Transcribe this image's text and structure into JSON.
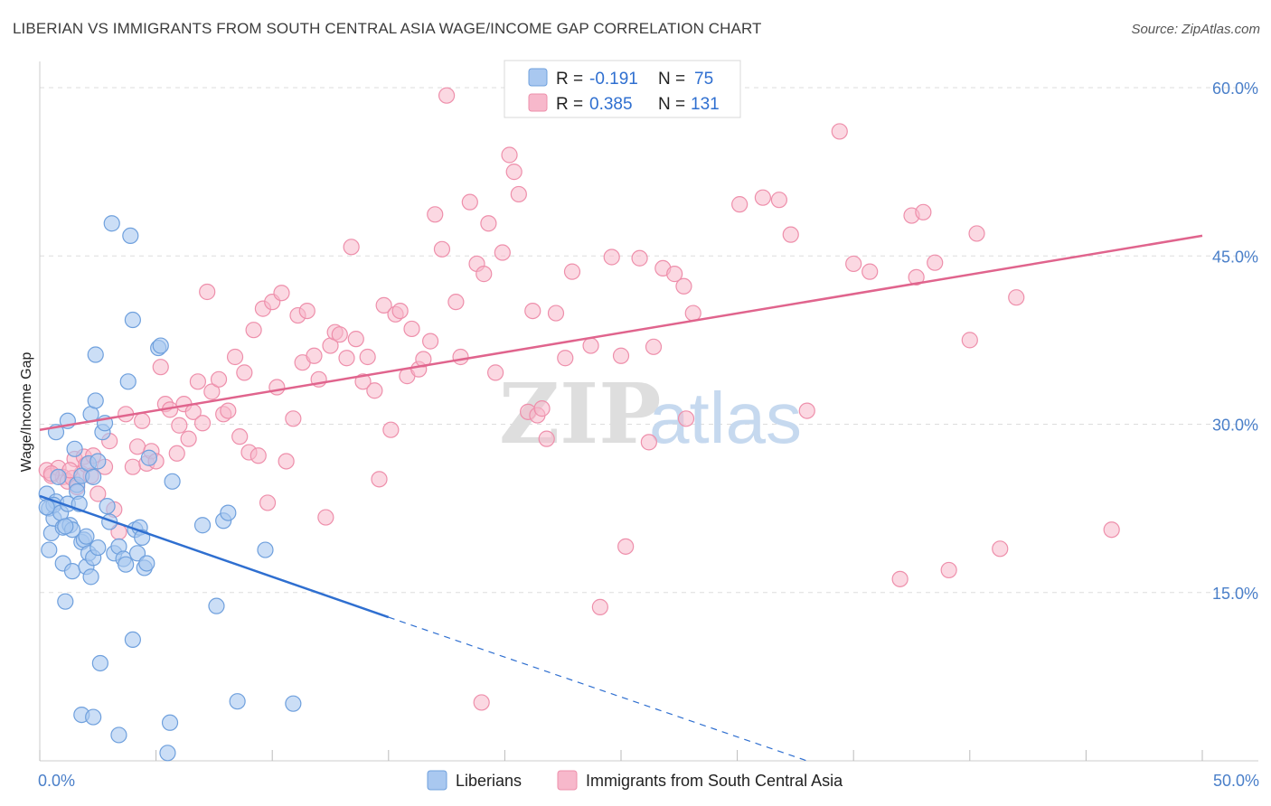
{
  "title": "LIBERIAN VS IMMIGRANTS FROM SOUTH CENTRAL ASIA WAGE/INCOME GAP CORRELATION CHART",
  "source": "Source: ZipAtlas.com",
  "watermark": {
    "zip": "ZIP",
    "atlas": "atlas"
  },
  "colors": {
    "blue_fill": "#a9c8f0",
    "blue_stroke": "#6fa0dd",
    "blue_line": "#2f6fd0",
    "pink_fill": "#f7b8cb",
    "pink_stroke": "#ee8fab",
    "pink_line": "#e0648d",
    "tick_text": "#4a7fc9",
    "grid": "#dddddd"
  },
  "legend": {
    "r_label": "R =",
    "n_label": "N =",
    "rows": [
      {
        "r": "-0.191",
        "n": "75"
      },
      {
        "r": "0.385",
        "n": "131"
      }
    ]
  },
  "chart_data": {
    "type": "scatter",
    "title": "LIBERIAN VS IMMIGRANTS FROM SOUTH CENTRAL ASIA WAGE/INCOME GAP CORRELATION CHART",
    "xlabel": "",
    "ylabel": "Wage/Income Gap",
    "xlim": [
      0,
      50
    ],
    "ylim": [
      0,
      60
    ],
    "x_tick_labels": [
      "0.0%",
      "50.0%"
    ],
    "y_ticks": [
      15,
      30,
      45,
      60
    ],
    "y_tick_labels": [
      "15.0%",
      "30.0%",
      "45.0%",
      "60.0%"
    ],
    "grid": true,
    "legend_position": "top-center",
    "series": [
      {
        "name": "Liberians",
        "r": -0.191,
        "n": 75,
        "trend": {
          "x": [
            0,
            15
          ],
          "y": [
            23.6,
            12.8
          ],
          "dashed_to": [
            33,
            0
          ]
        },
        "points": [
          [
            0.3,
            23.8
          ],
          [
            0.4,
            22.5
          ],
          [
            0.5,
            20.3
          ],
          [
            0.4,
            18.8
          ],
          [
            0.6,
            21.6
          ],
          [
            0.7,
            23.1
          ],
          [
            0.8,
            25.3
          ],
          [
            0.6,
            22.8
          ],
          [
            0.9,
            22.1
          ],
          [
            1.0,
            20.8
          ],
          [
            1.0,
            17.6
          ],
          [
            1.1,
            14.2
          ],
          [
            1.2,
            22.9
          ],
          [
            1.3,
            21.0
          ],
          [
            1.2,
            30.3
          ],
          [
            0.7,
            29.3
          ],
          [
            1.4,
            16.9
          ],
          [
            1.4,
            20.6
          ],
          [
            1.5,
            27.8
          ],
          [
            1.6,
            24.6
          ],
          [
            1.6,
            24.0
          ],
          [
            1.7,
            22.9
          ],
          [
            1.8,
            25.4
          ],
          [
            1.8,
            19.5
          ],
          [
            1.9,
            19.7
          ],
          [
            2.0,
            17.3
          ],
          [
            2.0,
            20.0
          ],
          [
            2.1,
            18.5
          ],
          [
            2.1,
            26.5
          ],
          [
            2.2,
            16.4
          ],
          [
            2.2,
            30.9
          ],
          [
            2.3,
            25.3
          ],
          [
            2.3,
            18.1
          ],
          [
            2.4,
            32.1
          ],
          [
            2.4,
            36.2
          ],
          [
            2.5,
            19.0
          ],
          [
            2.6,
            8.7
          ],
          [
            2.7,
            29.3
          ],
          [
            2.8,
            30.1
          ],
          [
            2.9,
            22.7
          ],
          [
            3.0,
            21.3
          ],
          [
            3.1,
            47.9
          ],
          [
            3.2,
            18.5
          ],
          [
            3.4,
            19.1
          ],
          [
            3.6,
            18.0
          ],
          [
            3.7,
            17.5
          ],
          [
            3.8,
            33.8
          ],
          [
            3.9,
            46.8
          ],
          [
            4.0,
            39.3
          ],
          [
            4.0,
            10.8
          ],
          [
            4.1,
            20.6
          ],
          [
            4.2,
            18.5
          ],
          [
            4.3,
            20.8
          ],
          [
            4.4,
            19.9
          ],
          [
            4.5,
            17.2
          ],
          [
            4.6,
            17.6
          ],
          [
            4.7,
            27.0
          ],
          [
            5.1,
            36.8
          ],
          [
            5.2,
            37.0
          ],
          [
            5.5,
            0.7
          ],
          [
            5.6,
            3.4
          ],
          [
            5.7,
            24.9
          ],
          [
            7.0,
            21.0
          ],
          [
            7.6,
            13.8
          ],
          [
            7.9,
            21.4
          ],
          [
            8.1,
            22.1
          ],
          [
            8.5,
            5.3
          ],
          [
            9.7,
            18.8
          ],
          [
            10.9,
            5.1
          ],
          [
            1.8,
            4.1
          ],
          [
            2.3,
            3.9
          ],
          [
            3.4,
            2.3
          ],
          [
            0.3,
            22.6
          ],
          [
            1.1,
            20.9
          ],
          [
            2.5,
            26.7
          ]
        ]
      },
      {
        "name": "Immigrants from South Central Asia",
        "r": 0.385,
        "n": 131,
        "trend": {
          "x": [
            0,
            50
          ],
          "y": [
            29.5,
            46.8
          ]
        },
        "points": [
          [
            0.3,
            25.9
          ],
          [
            0.5,
            25.4
          ],
          [
            0.8,
            26.1
          ],
          [
            1.0,
            25.3
          ],
          [
            1.2,
            24.9
          ],
          [
            1.4,
            25.2
          ],
          [
            1.5,
            26.9
          ],
          [
            1.6,
            24.4
          ],
          [
            1.8,
            25.6
          ],
          [
            1.9,
            27.1
          ],
          [
            2.0,
            26.4
          ],
          [
            2.2,
            25.4
          ],
          [
            2.3,
            27.2
          ],
          [
            2.5,
            23.8
          ],
          [
            2.8,
            26.2
          ],
          [
            3.0,
            28.5
          ],
          [
            3.2,
            22.4
          ],
          [
            3.4,
            20.4
          ],
          [
            3.7,
            30.9
          ],
          [
            4.0,
            26.2
          ],
          [
            4.2,
            28.0
          ],
          [
            4.4,
            30.3
          ],
          [
            4.6,
            26.5
          ],
          [
            4.8,
            27.6
          ],
          [
            5.0,
            26.7
          ],
          [
            5.2,
            35.1
          ],
          [
            5.4,
            31.8
          ],
          [
            5.6,
            31.3
          ],
          [
            5.9,
            27.4
          ],
          [
            6.0,
            29.9
          ],
          [
            6.2,
            31.8
          ],
          [
            6.4,
            28.7
          ],
          [
            6.6,
            31.1
          ],
          [
            6.8,
            33.8
          ],
          [
            7.0,
            30.1
          ],
          [
            7.2,
            41.8
          ],
          [
            7.4,
            32.9
          ],
          [
            7.7,
            34.0
          ],
          [
            7.9,
            30.9
          ],
          [
            8.1,
            31.2
          ],
          [
            8.4,
            36.0
          ],
          [
            8.6,
            28.9
          ],
          [
            8.8,
            34.6
          ],
          [
            9.0,
            27.5
          ],
          [
            9.2,
            38.4
          ],
          [
            9.4,
            27.2
          ],
          [
            9.6,
            40.3
          ],
          [
            9.8,
            23.0
          ],
          [
            10.0,
            40.9
          ],
          [
            10.2,
            33.3
          ],
          [
            10.4,
            41.7
          ],
          [
            10.6,
            26.7
          ],
          [
            10.9,
            30.5
          ],
          [
            11.1,
            39.7
          ],
          [
            11.3,
            35.5
          ],
          [
            11.5,
            40.1
          ],
          [
            11.8,
            36.1
          ],
          [
            12.0,
            34.0
          ],
          [
            12.3,
            21.7
          ],
          [
            12.5,
            37.0
          ],
          [
            12.7,
            38.2
          ],
          [
            12.9,
            38.0
          ],
          [
            13.2,
            35.9
          ],
          [
            13.4,
            45.8
          ],
          [
            13.6,
            37.6
          ],
          [
            13.9,
            33.8
          ],
          [
            14.1,
            36.0
          ],
          [
            14.4,
            33.0
          ],
          [
            14.6,
            25.1
          ],
          [
            14.8,
            40.6
          ],
          [
            15.1,
            29.5
          ],
          [
            15.3,
            39.8
          ],
          [
            15.5,
            40.1
          ],
          [
            15.8,
            34.3
          ],
          [
            16.0,
            38.5
          ],
          [
            16.3,
            34.9
          ],
          [
            16.5,
            35.8
          ],
          [
            16.8,
            37.4
          ],
          [
            17.0,
            48.7
          ],
          [
            17.3,
            45.6
          ],
          [
            17.5,
            59.3
          ],
          [
            17.9,
            40.9
          ],
          [
            18.1,
            36.0
          ],
          [
            18.5,
            49.8
          ],
          [
            18.8,
            44.3
          ],
          [
            19.1,
            43.4
          ],
          [
            19.3,
            47.9
          ],
          [
            19.6,
            34.6
          ],
          [
            19.9,
            45.3
          ],
          [
            20.2,
            54.0
          ],
          [
            20.4,
            52.5
          ],
          [
            20.6,
            50.5
          ],
          [
            21.0,
            31.1
          ],
          [
            21.2,
            40.1
          ],
          [
            21.4,
            30.8
          ],
          [
            21.6,
            31.4
          ],
          [
            21.8,
            28.7
          ],
          [
            22.2,
            39.9
          ],
          [
            22.6,
            35.9
          ],
          [
            22.9,
            43.6
          ],
          [
            23.7,
            37.0
          ],
          [
            24.1,
            13.7
          ],
          [
            24.6,
            44.9
          ],
          [
            25.0,
            36.1
          ],
          [
            25.2,
            19.1
          ],
          [
            25.8,
            44.8
          ],
          [
            26.2,
            28.4
          ],
          [
            26.4,
            36.9
          ],
          [
            26.8,
            43.9
          ],
          [
            27.3,
            43.4
          ],
          [
            27.7,
            42.3
          ],
          [
            27.8,
            30.5
          ],
          [
            28.1,
            39.9
          ],
          [
            30.1,
            49.6
          ],
          [
            31.1,
            50.2
          ],
          [
            31.8,
            50.0
          ],
          [
            32.3,
            46.9
          ],
          [
            33.0,
            31.2
          ],
          [
            34.4,
            56.1
          ],
          [
            35.0,
            44.3
          ],
          [
            35.7,
            43.6
          ],
          [
            37.0,
            16.2
          ],
          [
            37.5,
            48.6
          ],
          [
            37.7,
            43.1
          ],
          [
            38.0,
            48.9
          ],
          [
            38.5,
            44.4
          ],
          [
            39.1,
            17.0
          ],
          [
            40.0,
            37.5
          ],
          [
            40.3,
            47.0
          ],
          [
            41.3,
            18.9
          ],
          [
            42.0,
            41.3
          ],
          [
            46.1,
            20.6
          ],
          [
            19.0,
            5.2
          ],
          [
            0.5,
            25.6
          ],
          [
            1.3,
            25.9
          ]
        ]
      }
    ]
  },
  "bottom_legend": [
    {
      "label": "Liberians"
    },
    {
      "label": "Immigrants from South Central Asia"
    }
  ]
}
